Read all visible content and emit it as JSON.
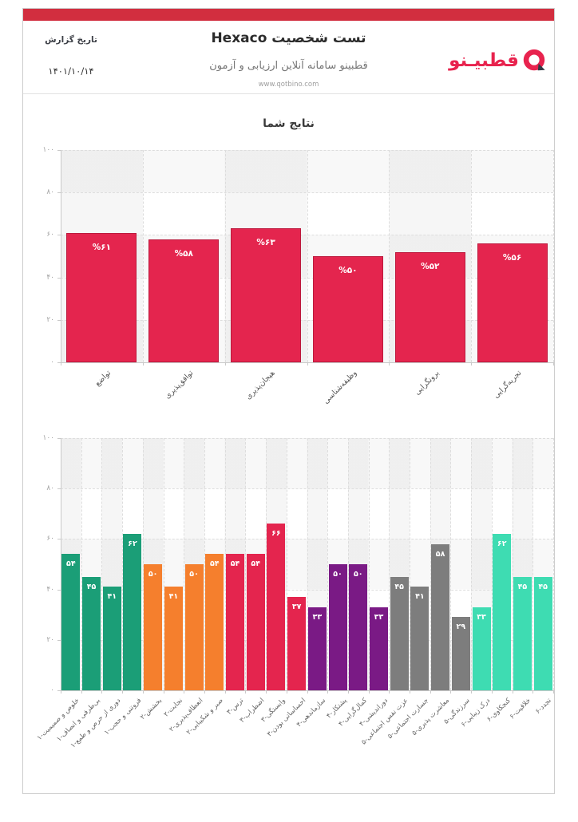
{
  "header": {
    "report_date_label": "تاریخ گزارش",
    "report_date": "۱۴۰۱/۱۰/۱۴",
    "title": "تست شخصیت Hexaco",
    "subtitle": "قطبینو سامانه آنلاین ارزیابی و آزمون",
    "website": "www.qotbino.com",
    "logo_text": "قطبیـنو"
  },
  "colors": {
    "banner_red": "#d22e3f",
    "bar_crimson": "#e4254e",
    "bar_crimson_border": "#bc1a3d",
    "logo_red": "#e8234e",
    "logo_tail_dark": "#333b46",
    "teal": "#1b9e77",
    "orange": "#f57f2d",
    "purple": "#7a1a85",
    "gray": "#7d7d7d",
    "mint": "#3edcb2"
  },
  "chart_data": [
    {
      "type": "bar",
      "title": "نتایج شما",
      "categories": [
        "تواضع",
        "توافق‌پذیری",
        "هیجان‌پذیری",
        "وظیفه‌شناسی",
        "برونگرایی",
        "تجربه‌گرایی"
      ],
      "values": [
        61,
        58,
        63,
        50,
        52,
        56
      ],
      "value_labels": [
        "%۶۱",
        "%۵۸",
        "%۶۳",
        "%۵۰",
        "%۵۲",
        "%۵۶"
      ],
      "value_label_style": "percent_prefix_persian",
      "bar_color_key": "bar_crimson",
      "xlabel": "",
      "ylabel": "",
      "ylim": [
        0,
        100
      ],
      "yticks": [
        0,
        20,
        40,
        60,
        80,
        100
      ],
      "ytick_labels": [
        "۰",
        "۲۰",
        "۴۰",
        "۶۰",
        "۸۰",
        "۱۰۰"
      ],
      "grid": true,
      "legend": false
    },
    {
      "type": "bar",
      "title": "",
      "categories": [
        "خلوص و صمیمیت-۱",
        "بی‌طرفی و انصاف-۱",
        "دوری از حرص و طمع-۱",
        "فروتنی و حجب-۱",
        "بخشش-۲",
        "نجابت-۲",
        "انعطاف‌پذیری-۲",
        "صبر و شکیبایی-۲",
        "ترس-۳",
        "اضطراب-۳",
        "وابستگی-۳",
        "احساساتی بودن-۳",
        "سازماندهی-۴",
        "پشتکار-۴",
        "کمال‌گرایی-۴",
        "دوراندیشی-۴",
        "عزت نفس اجتماعی-۵",
        "جسارت اجتماعی-۵",
        "معاشرت پذیری-۵",
        "سرزندگی-۵",
        "درک زیبایی-۶",
        "کنجکاوی-۶",
        "خلاقیت-۶",
        "تجدد-۶"
      ],
      "values": [
        54,
        45,
        41,
        62,
        50,
        41,
        50,
        54,
        54,
        54,
        66,
        37,
        33,
        50,
        50,
        33,
        45,
        41,
        58,
        29,
        33,
        62,
        45,
        45
      ],
      "groups": [
        1,
        1,
        1,
        1,
        2,
        2,
        2,
        2,
        3,
        3,
        3,
        3,
        4,
        4,
        4,
        4,
        5,
        5,
        5,
        5,
        6,
        6,
        6,
        6
      ],
      "group_color_keys": {
        "1": "teal",
        "2": "orange",
        "3": "bar_crimson",
        "4": "purple",
        "5": "gray",
        "6": "mint"
      },
      "value_label_style": "persian_digits",
      "xlabel": "",
      "ylabel": "",
      "ylim": [
        0,
        100
      ],
      "yticks": [
        0,
        20,
        40,
        60,
        80,
        100
      ],
      "ytick_labels": [
        "۰",
        "۲۰",
        "۴۰",
        "۶۰",
        "۸۰",
        "۱۰۰"
      ],
      "grid": true,
      "legend": false
    }
  ]
}
